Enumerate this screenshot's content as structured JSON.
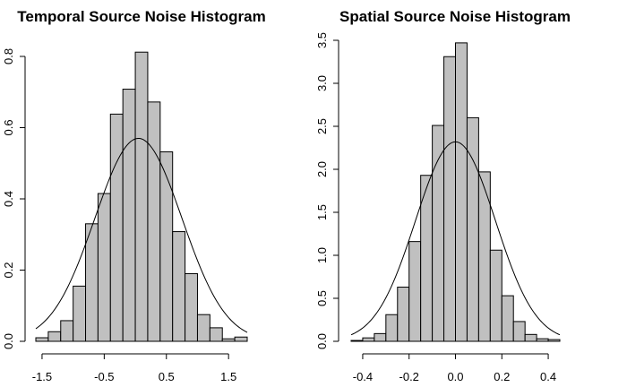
{
  "chart_data": [
    {
      "type": "bar",
      "title": "Temporal Source Noise Histogram",
      "xlabel": "",
      "ylabel": "",
      "xlim": [
        -1.6,
        1.8
      ],
      "ylim": [
        0,
        0.81
      ],
      "xticks": [
        -1.5,
        -0.5,
        0.5,
        1.5
      ],
      "xtick_labels": [
        "-1.5",
        "-0.5",
        "0.5",
        "1.5"
      ],
      "yticks": [
        0,
        0.2,
        0.4,
        0.6,
        0.8
      ],
      "ytick_labels": [
        "0.0",
        "0.2",
        "0.4",
        "0.6",
        "0.8"
      ],
      "bin_edges": [
        -1.6,
        -1.4,
        -1.2,
        -1.0,
        -0.8,
        -0.6,
        -0.4,
        -0.2,
        0.0,
        0.2,
        0.4,
        0.6,
        0.8,
        1.0,
        1.2,
        1.4,
        1.6,
        1.8
      ],
      "values": [
        0.01,
        0.027,
        0.058,
        0.155,
        0.33,
        0.415,
        0.638,
        0.708,
        0.812,
        0.672,
        0.532,
        0.308,
        0.19,
        0.075,
        0.038,
        0.007,
        0.012
      ],
      "density_curve": {
        "mean": 0.05,
        "sd": 0.7
      }
    },
    {
      "type": "bar",
      "title": "Spatial Source Noise Histogram",
      "xlabel": "",
      "ylabel": "",
      "xlim": [
        -0.45,
        0.45
      ],
      "ylim": [
        0,
        3.5
      ],
      "xticks": [
        -0.4,
        -0.2,
        0.0,
        0.2,
        0.4
      ],
      "xtick_labels": [
        "-0.4",
        "-0.2",
        "0.0",
        "0.2",
        "0.4"
      ],
      "yticks": [
        0,
        0.5,
        1.0,
        1.5,
        2.0,
        2.5,
        3.0,
        3.5
      ],
      "ytick_labels": [
        "0.0",
        "0.5",
        "1.0",
        "1.5",
        "2.0",
        "2.5",
        "3.0",
        "3.5"
      ],
      "bin_edges": [
        -0.45,
        -0.4,
        -0.35,
        -0.3,
        -0.25,
        -0.2,
        -0.15,
        -0.1,
        -0.05,
        0.0,
        0.05,
        0.1,
        0.15,
        0.2,
        0.25,
        0.3,
        0.35,
        0.4,
        0.45
      ],
      "values": [
        0.01,
        0.04,
        0.09,
        0.31,
        0.63,
        1.16,
        1.93,
        2.51,
        3.31,
        3.47,
        2.6,
        1.97,
        1.06,
        0.53,
        0.23,
        0.08,
        0.03,
        0.02
      ],
      "density_curve": {
        "mean": 0.0,
        "sd": 0.172
      }
    }
  ]
}
